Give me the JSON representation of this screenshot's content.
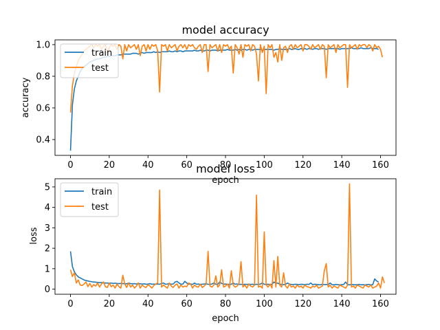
{
  "chart_data": [
    {
      "type": "line",
      "title": "model accuracy",
      "xlabel": "epoch",
      "ylabel": "accuracy",
      "xlim": [
        -8,
        168
      ],
      "ylim": [
        0.3,
        1.03
      ],
      "x_ticks": [
        0,
        20,
        40,
        60,
        80,
        100,
        120,
        140,
        160
      ],
      "y_ticks": [
        0.4,
        0.6,
        0.8,
        1.0
      ],
      "y_tick_labels": [
        "0.4",
        "0.6",
        "0.8",
        "1.0"
      ],
      "legend": {
        "placement": "top-left",
        "entries": [
          "train",
          "test"
        ]
      },
      "grid": false,
      "series": [
        {
          "name": "train",
          "color": "#1f77b4",
          "values": [
            0.33,
            0.62,
            0.72,
            0.77,
            0.8,
            0.83,
            0.85,
            0.86,
            0.87,
            0.88,
            0.89,
            0.895,
            0.9,
            0.905,
            0.91,
            0.91,
            0.915,
            0.92,
            0.92,
            0.925,
            0.925,
            0.93,
            0.93,
            0.93,
            0.935,
            0.935,
            0.935,
            0.94,
            0.94,
            0.94,
            0.94,
            0.94,
            0.945,
            0.945,
            0.945,
            0.94,
            0.945,
            0.95,
            0.945,
            0.95,
            0.95,
            0.95,
            0.95,
            0.955,
            0.95,
            0.955,
            0.95,
            0.955,
            0.955,
            0.955,
            0.955,
            0.96,
            0.955,
            0.955,
            0.96,
            0.955,
            0.96,
            0.96,
            0.955,
            0.96,
            0.96,
            0.96,
            0.96,
            0.96,
            0.965,
            0.96,
            0.96,
            0.965,
            0.96,
            0.96,
            0.965,
            0.965,
            0.96,
            0.965,
            0.965,
            0.965,
            0.96,
            0.965,
            0.965,
            0.965,
            0.965,
            0.97,
            0.965,
            0.965,
            0.965,
            0.97,
            0.965,
            0.97,
            0.965,
            0.97,
            0.97,
            0.965,
            0.97,
            0.97,
            0.965,
            0.97,
            0.97,
            0.97,
            0.97,
            0.965,
            0.97,
            0.97,
            0.97,
            0.97,
            0.97,
            0.965,
            0.97,
            0.97,
            0.975,
            0.97,
            0.97,
            0.97,
            0.97,
            0.975,
            0.97,
            0.97,
            0.975,
            0.97,
            0.97,
            0.975,
            0.97,
            0.975,
            0.97,
            0.975,
            0.975,
            0.97,
            0.975,
            0.975,
            0.97,
            0.975,
            0.975,
            0.975,
            0.97,
            0.975,
            0.975,
            0.975,
            0.975,
            0.975,
            0.975,
            0.97,
            0.975,
            0.975,
            0.975,
            0.975,
            0.975,
            0.98,
            0.975,
            0.975,
            0.975,
            0.975,
            0.98,
            0.975,
            0.975,
            0.975,
            0.975,
            0.98,
            0.975,
            0.975,
            0.975,
            0.97
          ]
        },
        {
          "name": "test",
          "color": "#ff7f0e",
          "values": [
            0.57,
            0.74,
            0.82,
            0.86,
            0.9,
            0.92,
            0.94,
            0.96,
            0.97,
            0.98,
            0.99,
            1.0,
            0.98,
            1.0,
            0.99,
            1.0,
            0.97,
            0.99,
            1.0,
            0.95,
            0.98,
            1.0,
            0.99,
            1.0,
            0.97,
            1.0,
            0.99,
            0.91,
            1.0,
            0.96,
            1.0,
            0.98,
            0.99,
            1.0,
            0.97,
            1.0,
            0.93,
            0.99,
            1.0,
            0.96,
            1.0,
            0.97,
            1.0,
            0.99,
            1.0,
            0.96,
            0.7,
            1.0,
            0.99,
            1.0,
            0.96,
            1.0,
            0.98,
            0.99,
            1.0,
            0.96,
            0.99,
            1.0,
            0.98,
            1.0,
            0.97,
            1.0,
            0.99,
            1.0,
            0.98,
            0.97,
            0.99,
            1.0,
            0.95,
            1.0,
            1.0,
            0.83,
            1.0,
            0.98,
            0.99,
            1.0,
            0.96,
            1.0,
            0.95,
            1.0,
            0.99,
            1.0,
            0.97,
            0.99,
            0.82,
            1.0,
            0.98,
            0.94,
            1.0,
            0.92,
            1.0,
            0.99,
            1.0,
            0.96,
            1.0,
            0.99,
            0.94,
            0.77,
            1.0,
            0.95,
            0.99,
            0.69,
            1.0,
            0.98,
            1.0,
            0.92,
            0.95,
            0.89,
            1.0,
            0.9,
            0.98,
            0.99,
            0.95,
            0.99,
            1.0,
            0.97,
            1.0,
            0.98,
            0.99,
            1.0,
            0.96,
            1.0,
            1.0,
            0.99,
            0.97,
            1.0,
            0.98,
            0.99,
            1.0,
            0.97,
            1.0,
            0.99,
            0.79,
            1.0,
            0.98,
            0.99,
            1.0,
            0.95,
            1.0,
            0.98,
            0.99,
            1.0,
            1.0,
            0.73,
            1.0,
            0.98,
            0.99,
            1.0,
            0.97,
            1.0,
            0.99,
            1.0,
            1.0,
            0.98,
            1.0,
            0.99,
            0.96,
            1.0,
            0.98,
            0.99,
            0.97,
            0.92
          ]
        }
      ]
    },
    {
      "type": "line",
      "title": "model loss",
      "xlabel": "epoch",
      "ylabel": "loss",
      "xlim": [
        -8,
        168
      ],
      "ylim": [
        -0.25,
        5.4
      ],
      "x_ticks": [
        0,
        20,
        40,
        60,
        80,
        100,
        120,
        140,
        160
      ],
      "y_ticks": [
        0,
        1,
        2,
        3,
        4,
        5
      ],
      "y_tick_labels": [
        "0",
        "1",
        "2",
        "3",
        "4",
        "5"
      ],
      "legend": {
        "placement": "top-left",
        "entries": [
          "train",
          "test"
        ]
      },
      "grid": false,
      "series": [
        {
          "name": "train",
          "color": "#1f77b4",
          "values": [
            1.85,
            1.1,
            0.85,
            0.7,
            0.6,
            0.55,
            0.5,
            0.45,
            0.42,
            0.4,
            0.38,
            0.36,
            0.35,
            0.34,
            0.33,
            0.32,
            0.32,
            0.31,
            0.3,
            0.3,
            0.29,
            0.3,
            0.28,
            0.29,
            0.28,
            0.27,
            0.28,
            0.27,
            0.27,
            0.26,
            0.3,
            0.27,
            0.26,
            0.27,
            0.25,
            0.28,
            0.26,
            0.25,
            0.26,
            0.24,
            0.25,
            0.27,
            0.24,
            0.25,
            0.24,
            0.25,
            0.24,
            0.28,
            0.3,
            0.24,
            0.25,
            0.27,
            0.24,
            0.25,
            0.35,
            0.38,
            0.3,
            0.24,
            0.25,
            0.38,
            0.3,
            0.24,
            0.26,
            0.23,
            0.3,
            0.24,
            0.25,
            0.23,
            0.24,
            0.25,
            0.26,
            0.24,
            0.23,
            0.25,
            0.3,
            0.24,
            0.23,
            0.35,
            0.28,
            0.24,
            0.25,
            0.24,
            0.23,
            0.24,
            0.3,
            0.24,
            0.25,
            0.23,
            0.24,
            0.22,
            0.24,
            0.23,
            0.24,
            0.23,
            0.24,
            0.22,
            0.24,
            0.23,
            0.25,
            0.3,
            0.24,
            0.23,
            0.24,
            0.22,
            0.24,
            0.35,
            0.28,
            0.3,
            0.24,
            0.23,
            0.22,
            0.24,
            0.3,
            0.25,
            0.23,
            0.22,
            0.24,
            0.23,
            0.22,
            0.24,
            0.23,
            0.22,
            0.24,
            0.23,
            0.3,
            0.22,
            0.24,
            0.23,
            0.22,
            0.21,
            0.24,
            0.22,
            0.23,
            0.22,
            0.3,
            0.22,
            0.21,
            0.23,
            0.22,
            0.21,
            0.22,
            0.23,
            0.35,
            0.22,
            0.21,
            0.23,
            0.22,
            0.21,
            0.22,
            0.23,
            0.21,
            0.22,
            0.21,
            0.22,
            0.23,
            0.21,
            0.22,
            0.5,
            0.4,
            0.35
          ]
        },
        {
          "name": "test",
          "color": "#ff7f0e",
          "values": [
            0.95,
            0.62,
            0.8,
            0.3,
            0.45,
            0.2,
            0.18,
            0.25,
            0.35,
            0.12,
            0.28,
            0.1,
            0.22,
            0.15,
            0.3,
            0.1,
            0.25,
            0.35,
            0.12,
            0.08,
            0.3,
            0.12,
            0.2,
            0.05,
            0.25,
            0.12,
            0.05,
            0.68,
            0.25,
            0.08,
            0.3,
            0.1,
            0.2,
            0.05,
            0.15,
            0.3,
            0.05,
            0.2,
            0.12,
            0.08,
            0.22,
            0.15,
            0.05,
            0.18,
            0.25,
            0.3,
            4.85,
            0.1,
            0.2,
            0.12,
            0.05,
            0.3,
            0.15,
            0.08,
            0.2,
            0.25,
            0.05,
            0.2,
            0.1,
            0.15,
            0.12,
            0.3,
            0.25,
            0.05,
            0.2,
            0.12,
            0.1,
            0.25,
            0.08,
            0.15,
            0.25,
            1.85,
            0.15,
            0.1,
            0.2,
            0.65,
            0.1,
            0.2,
            0.95,
            0.1,
            0.15,
            0.25,
            0.05,
            0.9,
            0.2,
            0.1,
            0.15,
            0.3,
            1.35,
            0.1,
            0.2,
            0.05,
            0.25,
            0.15,
            0.1,
            0.2,
            4.6,
            0.1,
            0.15,
            0.05,
            2.8,
            0.2,
            0.1,
            0.25,
            0.05,
            1.4,
            0.1,
            1.6,
            0.2,
            0.1,
            0.8,
            0.15,
            0.05,
            0.25,
            0.1,
            0.15,
            0.05,
            0.2,
            0.1,
            0.15,
            0.05,
            0.2,
            0.12,
            0.1,
            0.05,
            0.15,
            0.1,
            0.2,
            0.05,
            0.1,
            0.15,
            0.9,
            1.25,
            0.1,
            0.2,
            0.05,
            0.15,
            0.1,
            0.05,
            0.2,
            0.15,
            0.1,
            0.05,
            0.2,
            5.15,
            0.1,
            0.15,
            0.05,
            0.2,
            0.15,
            0.1,
            0.05,
            0.2,
            0.15,
            0.1,
            0.2,
            0.05,
            0.1,
            0.15,
            0.3,
            0.05,
            0.6,
            0.3
          ]
        }
      ]
    }
  ]
}
